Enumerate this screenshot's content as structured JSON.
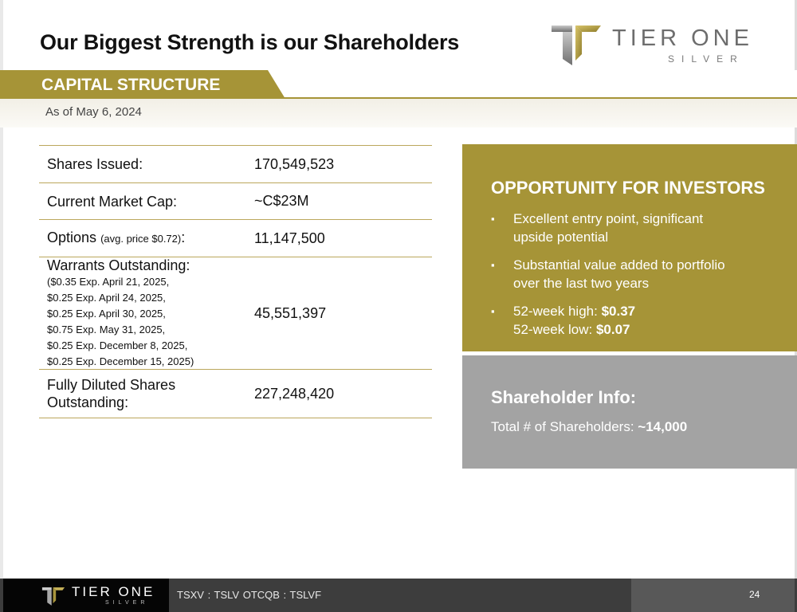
{
  "slide": {
    "title": "Our Biggest Strength is our Shareholders",
    "logo": {
      "line1": "TIER ONE",
      "line2": "SILVER"
    }
  },
  "section": {
    "title": "CAPITAL STRUCTURE",
    "as_of": "As of May 6, 2024"
  },
  "capital_table": {
    "shares_issued": {
      "label": "Shares Issued:",
      "value": "170,549,523"
    },
    "market_cap": {
      "label": "Current Market Cap:",
      "value": "~C$23M"
    },
    "options": {
      "label": "Options",
      "note": "(avg. price $0.72)",
      "colon": ":",
      "value": "11,147,500"
    },
    "warrants": {
      "label": "Warrants Outstanding:",
      "details": [
        "($0.35 Exp. April 21, 2025,",
        "$0.25 Exp. April 24, 2025,",
        "$0.25 Exp. April 30, 2025,",
        "$0.75 Exp. May 31, 2025,",
        "$0.25 Exp. December 8, 2025,",
        "$0.25 Exp. December 15, 2025)"
      ],
      "value": "45,551,397"
    },
    "fully_diluted": {
      "label_line1": "Fully Diluted Shares",
      "label_line2": "Outstanding:",
      "value": "227,248,420"
    }
  },
  "opportunity": {
    "title": "OPPORTUNITY FOR INVESTORS",
    "bullet_symbol": "▪",
    "bullets": [
      {
        "line1": "Excellent entry point, significant",
        "line2": "upside potential"
      },
      {
        "line1": "Substantial value added to portfolio",
        "line2": "over the last two years"
      }
    ],
    "high_label": "52-week high: ",
    "high_value": "$0.37",
    "low_label": "52-week low: ",
    "low_value": "$0.07"
  },
  "shareholder_info": {
    "title": "Shareholder Info:",
    "label": "Total # of Shareholders: ",
    "value": "~14,000"
  },
  "footer": {
    "logo_line1": "TIER ONE",
    "logo_line2": "SILVER",
    "tickers": "TSXV : TSLV   OTCQB : TSLVF",
    "page_number": "24"
  },
  "colors": {
    "gold": "#a69437",
    "gray_box": "#a3a3a3",
    "footer_dark": "#3d3d3d"
  }
}
